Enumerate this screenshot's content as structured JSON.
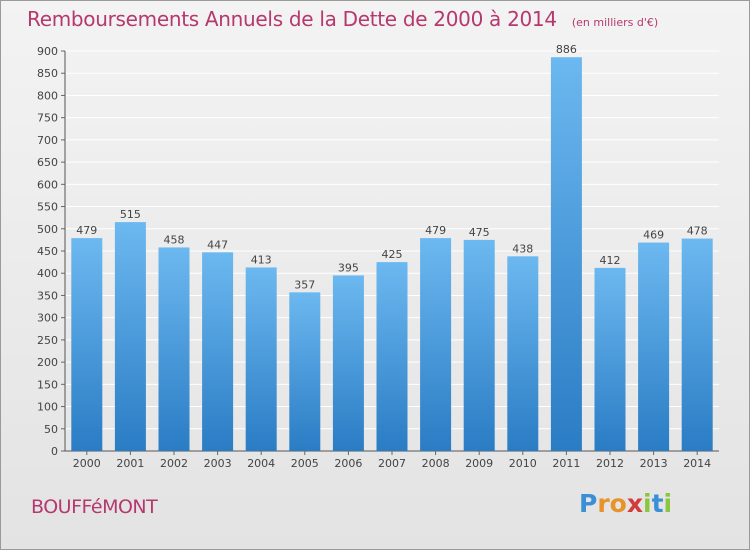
{
  "header": {
    "title": "Remboursements Annuels de la Dette de 2000 à 2014",
    "unit": "(en milliers d'€)"
  },
  "footer": {
    "commune": "BOUFFéMONT",
    "logo_letters": [
      "P",
      "r",
      "o",
      "x",
      "i",
      "t",
      "i"
    ],
    "logo_colors": [
      "#3a8fd6",
      "#e8932a",
      "#e8932a",
      "#d23c3c",
      "#8cc63f",
      "#3a8fd6",
      "#8cc63f"
    ]
  },
  "colors": {
    "bar": "#4a9ee0",
    "bar_light": "#6cb8f0",
    "bar_dark": "#2a7cc4",
    "grid": "#ffffff",
    "title": "#b5386e"
  },
  "chart_data": {
    "type": "bar",
    "title": "Remboursements Annuels de la Dette de 2000 à 2014",
    "subtitle": "(en milliers d'€)",
    "xlabel": "",
    "ylabel": "",
    "categories": [
      "2000",
      "2001",
      "2002",
      "2003",
      "2004",
      "2005",
      "2006",
      "2007",
      "2008",
      "2009",
      "2010",
      "2011",
      "2012",
      "2013",
      "2014"
    ],
    "values": [
      479,
      515,
      458,
      447,
      413,
      357,
      395,
      425,
      479,
      475,
      438,
      886,
      412,
      469,
      478
    ],
    "ylim": [
      0,
      900
    ],
    "yticks": [
      0,
      50,
      100,
      150,
      200,
      250,
      300,
      350,
      400,
      450,
      500,
      550,
      600,
      650,
      700,
      750,
      800,
      850,
      900
    ],
    "grid": true,
    "data_labels": true
  }
}
